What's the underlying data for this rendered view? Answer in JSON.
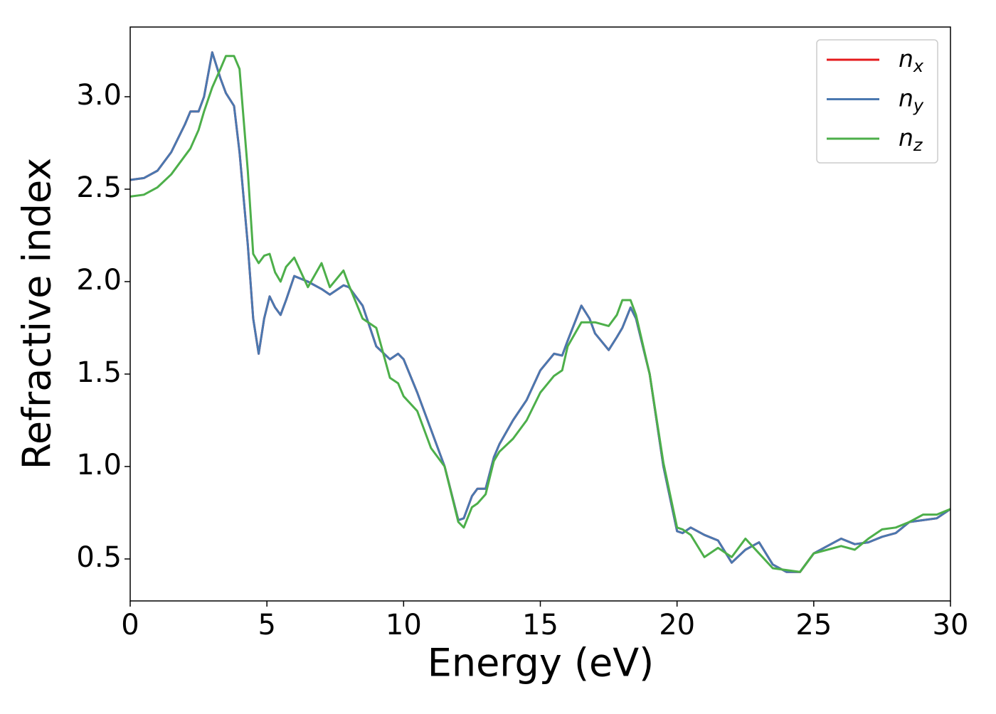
{
  "chart_data": {
    "type": "line",
    "xlabel": "Energy (eV)",
    "ylabel": "Refractive index",
    "x": [
      0,
      0.5,
      1,
      1.5,
      2,
      2.2,
      2.5,
      2.7,
      3,
      3.3,
      3.5,
      3.8,
      4,
      4.3,
      4.5,
      4.7,
      4.9,
      5.1,
      5.3,
      5.5,
      5.7,
      6,
      6.5,
      7,
      7.3,
      7.8,
      8,
      8.5,
      9,
      9.5,
      9.8,
      10,
      10.5,
      11,
      11.5,
      12,
      12.2,
      12.5,
      12.7,
      13,
      13.3,
      13.5,
      14,
      14.5,
      15,
      15.5,
      15.8,
      16,
      16.5,
      16.8,
      17,
      17.5,
      17.8,
      18,
      18.3,
      18.5,
      19,
      19.5,
      20,
      20.2,
      20.5,
      21,
      21.5,
      22,
      22.5,
      23,
      23.5,
      24,
      24.5,
      25,
      25.5,
      26,
      26.5,
      27,
      27.5,
      28,
      28.5,
      29,
      29.5,
      30
    ],
    "series": [
      {
        "name": "n_x",
        "color": "#e41a1c",
        "values": [
          2.55,
          2.56,
          2.6,
          2.7,
          2.85,
          2.92,
          2.92,
          3.0,
          3.24,
          3.1,
          3.02,
          2.95,
          2.7,
          2.2,
          1.8,
          1.61,
          1.8,
          1.92,
          1.86,
          1.82,
          1.9,
          2.03,
          2.0,
          1.96,
          1.93,
          1.98,
          1.97,
          1.87,
          1.65,
          1.58,
          1.61,
          1.58,
          1.4,
          1.2,
          1.0,
          0.71,
          0.72,
          0.84,
          0.88,
          0.88,
          1.05,
          1.12,
          1.25,
          1.36,
          1.52,
          1.61,
          1.6,
          1.68,
          1.87,
          1.8,
          1.72,
          1.63,
          1.7,
          1.75,
          1.86,
          1.8,
          1.5,
          1.0,
          0.65,
          0.64,
          0.67,
          0.63,
          0.6,
          0.48,
          0.55,
          0.59,
          0.47,
          0.43,
          0.43,
          0.53,
          0.57,
          0.61,
          0.58,
          0.59,
          0.62,
          0.64,
          0.7,
          0.71,
          0.72,
          0.77
        ]
      },
      {
        "name": "n_y",
        "color": "#4a78b0",
        "values": [
          2.55,
          2.56,
          2.6,
          2.7,
          2.85,
          2.92,
          2.92,
          3.0,
          3.24,
          3.1,
          3.02,
          2.95,
          2.7,
          2.2,
          1.8,
          1.61,
          1.8,
          1.92,
          1.86,
          1.82,
          1.9,
          2.03,
          2.0,
          1.96,
          1.93,
          1.98,
          1.97,
          1.87,
          1.65,
          1.58,
          1.61,
          1.58,
          1.4,
          1.2,
          1.0,
          0.71,
          0.72,
          0.84,
          0.88,
          0.88,
          1.05,
          1.12,
          1.25,
          1.36,
          1.52,
          1.61,
          1.6,
          1.68,
          1.87,
          1.8,
          1.72,
          1.63,
          1.7,
          1.75,
          1.86,
          1.8,
          1.5,
          1.0,
          0.65,
          0.64,
          0.67,
          0.63,
          0.6,
          0.48,
          0.55,
          0.59,
          0.47,
          0.43,
          0.43,
          0.53,
          0.57,
          0.61,
          0.58,
          0.59,
          0.62,
          0.64,
          0.7,
          0.71,
          0.72,
          0.77
        ]
      },
      {
        "name": "n_z",
        "color": "#4daf4a",
        "values": [
          2.46,
          2.47,
          2.51,
          2.58,
          2.68,
          2.72,
          2.82,
          2.92,
          3.05,
          3.15,
          3.22,
          3.22,
          3.15,
          2.6,
          2.15,
          2.1,
          2.14,
          2.15,
          2.05,
          2.0,
          2.08,
          2.13,
          1.97,
          2.1,
          1.97,
          2.06,
          1.98,
          1.8,
          1.75,
          1.48,
          1.45,
          1.38,
          1.3,
          1.1,
          1.0,
          0.7,
          0.67,
          0.78,
          0.8,
          0.85,
          1.03,
          1.08,
          1.15,
          1.25,
          1.4,
          1.49,
          1.52,
          1.65,
          1.78,
          1.78,
          1.78,
          1.76,
          1.82,
          1.9,
          1.9,
          1.82,
          1.5,
          1.02,
          0.67,
          0.66,
          0.63,
          0.51,
          0.56,
          0.51,
          0.61,
          0.53,
          0.45,
          0.44,
          0.43,
          0.53,
          0.55,
          0.57,
          0.55,
          0.61,
          0.66,
          0.67,
          0.7,
          0.74,
          0.74,
          0.77
        ]
      }
    ],
    "xlim": [
      0,
      30
    ],
    "xticks": [
      0,
      5,
      10,
      15,
      20,
      25,
      30
    ],
    "ylim": [
      0.273,
      3.377
    ],
    "yticks": [
      {
        "value": 0.5,
        "label": "0.5"
      },
      {
        "value": 1,
        "label": "1.0"
      },
      {
        "value": 1.5,
        "label": "1.5"
      },
      {
        "value": 2,
        "label": "2.0"
      },
      {
        "value": 2.5,
        "label": "2.5"
      },
      {
        "value": 3,
        "label": "3.0"
      }
    ],
    "legend": "upper right",
    "grid": false
  }
}
